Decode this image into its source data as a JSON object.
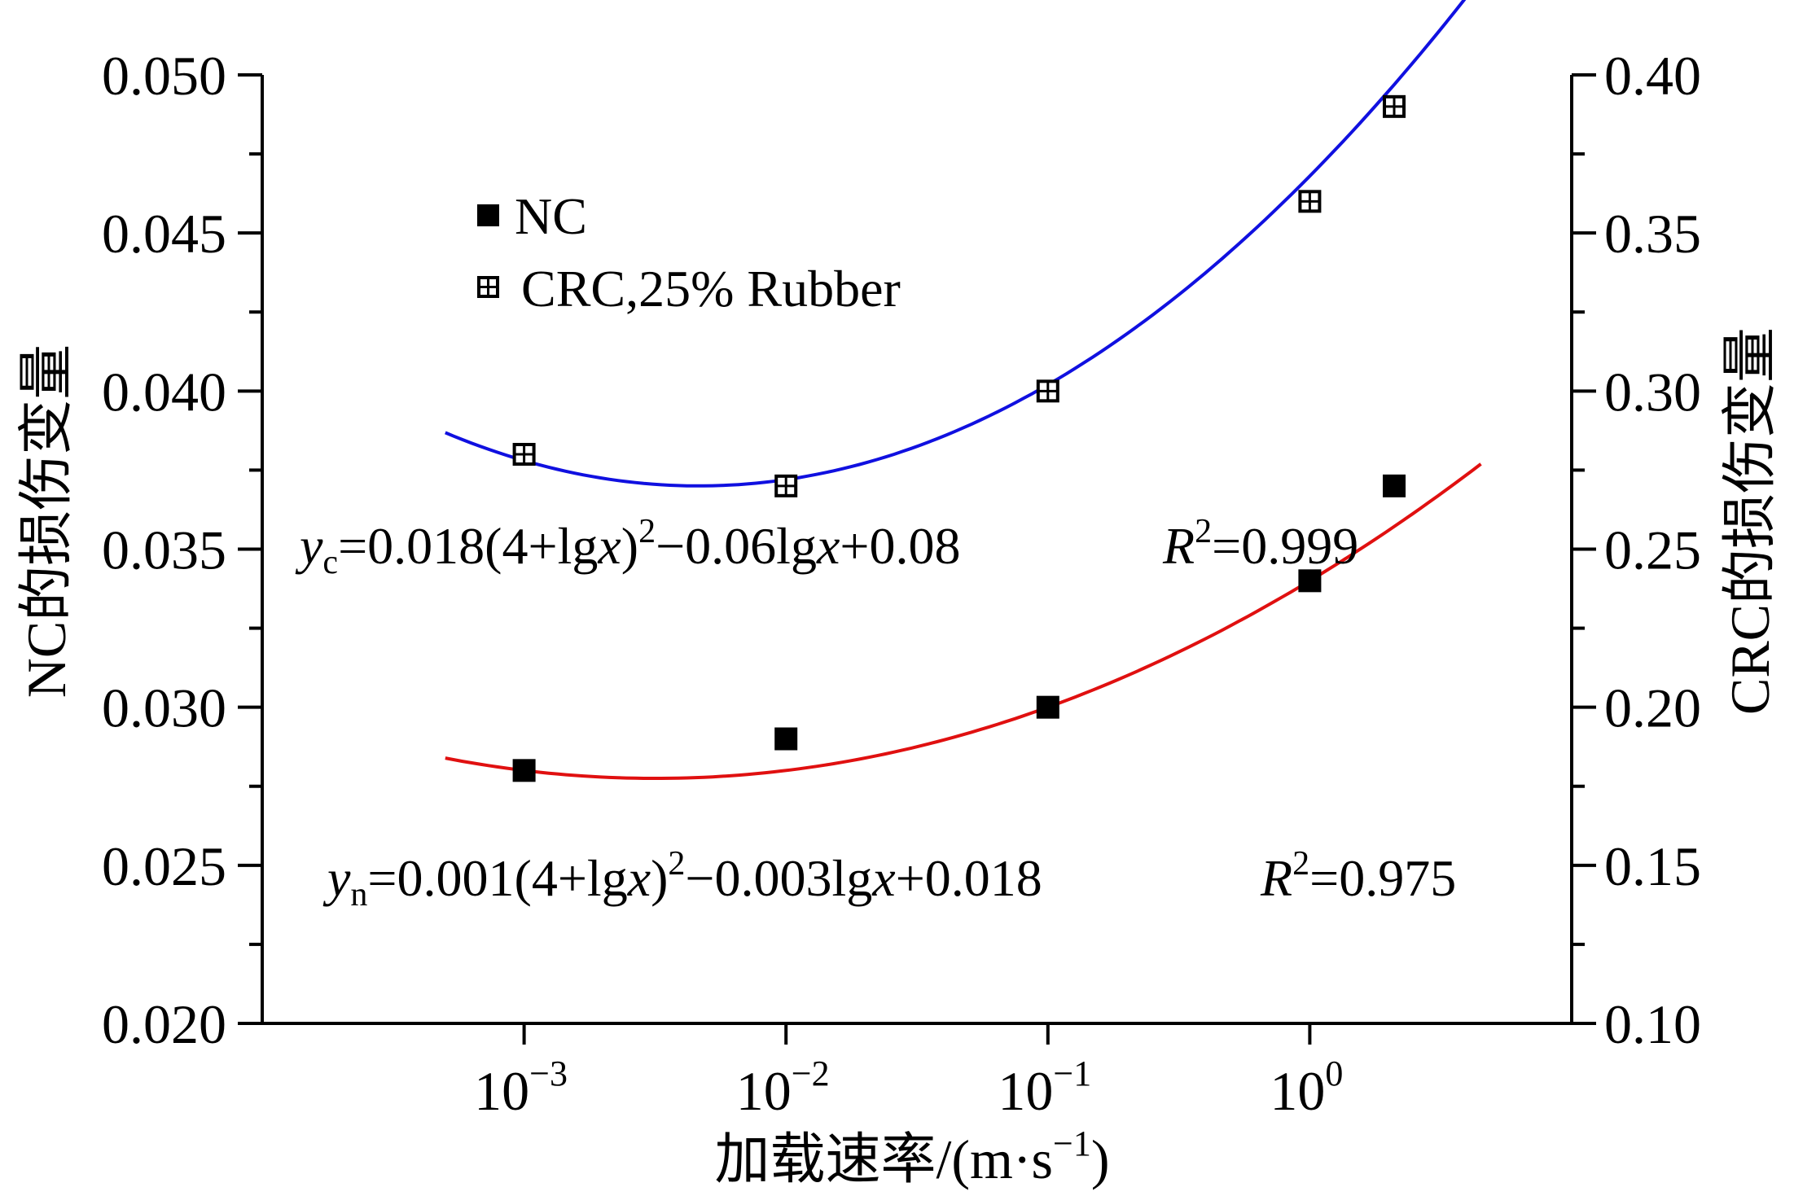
{
  "chart_data": {
    "type": "scatter",
    "x_scale": "log",
    "xlabel": {
      "prefix": "加载速率/(m·s",
      "sup": "−1",
      "suffix": ")"
    },
    "x_ticks": [
      {
        "value": 0.001,
        "base": "10",
        "exp": "−3"
      },
      {
        "value": 0.01,
        "base": "10",
        "exp": "−2"
      },
      {
        "value": 0.1,
        "base": "10",
        "exp": "−1"
      },
      {
        "value": 1,
        "base": "10",
        "exp": "0"
      }
    ],
    "xlim": [
      0.0001,
      10
    ],
    "y_left": {
      "label": "NC的损伤变量",
      "ylim": [
        0.02,
        0.05
      ],
      "ticks": [
        "0.020",
        "0.025",
        "0.030",
        "0.035",
        "0.040",
        "0.045",
        "0.050"
      ]
    },
    "y_right": {
      "label": "CRC的损伤变量",
      "ylim": [
        0.1,
        0.4
      ],
      "ticks": [
        "0.10",
        "0.15",
        "0.20",
        "0.25",
        "0.30",
        "0.35",
        "0.40"
      ]
    },
    "series": [
      {
        "name": "NC",
        "axis": "left",
        "marker": "filled-square",
        "color": "#000000",
        "fit_color": "#e01010",
        "x": [
          0.001,
          0.01,
          0.1,
          1,
          2.1
        ],
        "y": [
          0.028,
          0.029,
          0.03,
          0.034,
          0.037
        ],
        "fit": {
          "a": 0.001,
          "b": -0.003,
          "c": 0.018,
          "x_range": [
            0.0005,
            4.5
          ]
        }
      },
      {
        "name": "CRC,25% Rubber",
        "axis": "right",
        "marker": "crossed-square",
        "color": "#000000",
        "fit_color": "#1010e0",
        "x": [
          0.001,
          0.01,
          0.1,
          1,
          2.1
        ],
        "y": [
          0.28,
          0.27,
          0.3,
          0.36,
          0.39
        ],
        "fit": {
          "a": 0.018,
          "b": -0.06,
          "c": 0.08,
          "x_range": [
            0.0005,
            4.5
          ]
        }
      }
    ],
    "annotations": {
      "crc_equation": {
        "y": "y",
        "sub": "c",
        "body_a": "=0.018(4+lg",
        "x1": "x",
        "body_b": ")",
        "sq": "2",
        "body_c": "−0.06lg",
        "x2": "x",
        "body_d": "+0.08",
        "r": "R",
        "r_sup": "2",
        "r_val": "=0.999"
      },
      "nc_equation": {
        "y": "y",
        "sub": "n",
        "body_a": "=0.001(4+lg",
        "x1": "x",
        "body_b": ")",
        "sq": "2",
        "body_c": "−0.003lg",
        "x2": "x",
        "body_d": "+0.018",
        "r": "R",
        "r_sup": "2",
        "r_val": "=0.975"
      }
    }
  }
}
